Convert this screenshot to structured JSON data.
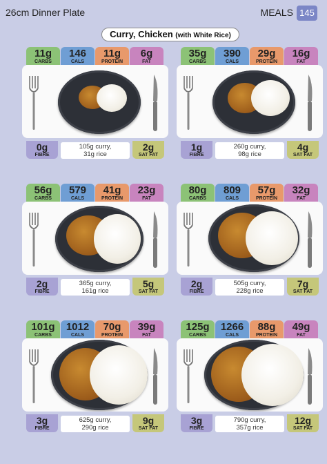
{
  "header": {
    "plate_label": "26cm Dinner Plate",
    "section": "MEALS",
    "page_number": "145"
  },
  "title": {
    "main": "Curry, Chicken",
    "sub": "(with White Rice)"
  },
  "labels": {
    "carbs": "CARBS",
    "cals": "CALS",
    "protein": "PROTEIN",
    "fat": "FAT",
    "fibre": "FIBRE",
    "sat_fat": "SAT FAT"
  },
  "colors": {
    "carbs": "#8cc276",
    "cals": "#6f9ed4",
    "protein": "#e8996b",
    "fat": "#c884be",
    "fibre": "#a8a2d4",
    "sat_fat": "#c5c77a",
    "accent": "#7b86c6"
  },
  "portions": [
    {
      "carbs": "11g",
      "cals": "146",
      "protein": "11g",
      "fat": "6g",
      "fibre": "0g",
      "sat_fat": "2g",
      "curry": "105g curry,",
      "rice": "31g rice"
    },
    {
      "carbs": "35g",
      "cals": "390",
      "protein": "29g",
      "fat": "16g",
      "fibre": "1g",
      "sat_fat": "4g",
      "curry": "260g curry,",
      "rice": "98g rice"
    },
    {
      "carbs": "56g",
      "cals": "579",
      "protein": "41g",
      "fat": "23g",
      "fibre": "2g",
      "sat_fat": "5g",
      "curry": "365g curry,",
      "rice": "161g rice"
    },
    {
      "carbs": "80g",
      "cals": "809",
      "protein": "57g",
      "fat": "32g",
      "fibre": "2g",
      "sat_fat": "7g",
      "curry": "505g curry,",
      "rice": "228g rice"
    },
    {
      "carbs": "101g",
      "cals": "1012",
      "protein": "70g",
      "fat": "39g",
      "fibre": "3g",
      "sat_fat": "9g",
      "curry": "625g curry,",
      "rice": "290g rice"
    },
    {
      "carbs": "125g",
      "cals": "1266",
      "protein": "88g",
      "fat": "49g",
      "fibre": "3g",
      "sat_fat": "12g",
      "curry": "790g curry,",
      "rice": "357g rice"
    }
  ]
}
